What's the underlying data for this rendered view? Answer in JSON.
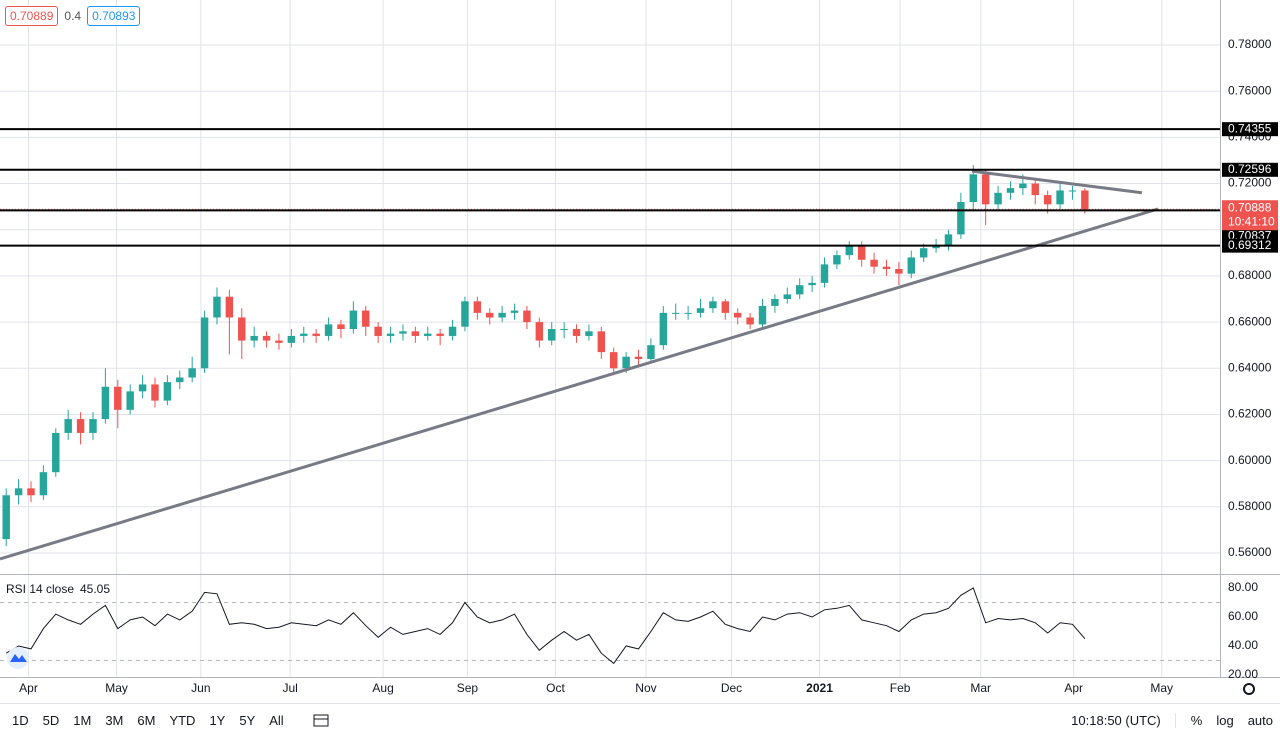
{
  "header": {
    "sell": "0.70889",
    "spread": "0.4",
    "buy": "0.70893"
  },
  "toolbar": {
    "ranges": [
      "1D",
      "5D",
      "1M",
      "3M",
      "6M",
      "YTD",
      "1Y",
      "5Y",
      "All"
    ],
    "time": "10:18:50 (UTC)",
    "options": [
      "%",
      "log",
      "auto"
    ]
  },
  "chart_data": [
    {
      "type": "candlestick",
      "up_color": "#26a69a",
      "down_color": "#ef5350",
      "grid": true,
      "xlim": [
        -0.5,
        97.9
      ],
      "ylim": [
        0.5509,
        0.7995
      ],
      "xticks": [
        {
          "value": 1.8,
          "label": "Apr"
        },
        {
          "value": 8.9,
          "label": "May"
        },
        {
          "value": 15.7,
          "label": "Jun"
        },
        {
          "value": 22.9,
          "label": "Jul"
        },
        {
          "value": 30.4,
          "label": "Aug"
        },
        {
          "value": 37.2,
          "label": "Sep"
        },
        {
          "value": 44.3,
          "label": "Oct"
        },
        {
          "value": 51.6,
          "label": "Nov"
        },
        {
          "value": 58.5,
          "label": "Dec"
        },
        {
          "value": 65.6,
          "label": "2021"
        },
        {
          "value": 72.1,
          "label": "Feb"
        },
        {
          "value": 78.6,
          "label": "Mar"
        },
        {
          "value": 86.1,
          "label": "Apr"
        },
        {
          "value": 93.2,
          "label": "May"
        }
      ],
      "yticks": [
        {
          "value": 0.56,
          "label": "0.56000"
        },
        {
          "value": 0.58,
          "label": "0.58000"
        },
        {
          "value": 0.6,
          "label": "0.60000"
        },
        {
          "value": 0.62,
          "label": "0.62000"
        },
        {
          "value": 0.64,
          "label": "0.64000"
        },
        {
          "value": 0.66,
          "label": "0.66000"
        },
        {
          "value": 0.68,
          "label": "0.68000"
        },
        {
          "value": 0.7,
          "label": "0.70000"
        },
        {
          "value": 0.72,
          "label": "0.72000"
        },
        {
          "value": 0.74,
          "label": "0.74000"
        },
        {
          "value": 0.76,
          "label": "0.76000"
        },
        {
          "value": 0.78,
          "label": "0.78000"
        }
      ],
      "levels": [
        0.74355,
        0.72596,
        0.70837,
        0.69312
      ],
      "trendlines": [
        {
          "x": [
            -0.5,
            92.9
          ],
          "y": [
            0.5574,
            0.709
          ]
        },
        {
          "x": [
            77.9,
            91.6
          ],
          "y": [
            0.7254,
            0.716
          ]
        }
      ],
      "countdown": "10:41:10",
      "ohlc": [
        [
          0.566,
          0.588,
          0.563,
          0.585
        ],
        [
          0.585,
          0.592,
          0.581,
          0.588
        ],
        [
          0.588,
          0.591,
          0.582,
          0.585
        ],
        [
          0.585,
          0.598,
          0.583,
          0.595
        ],
        [
          0.595,
          0.614,
          0.593,
          0.612
        ],
        [
          0.612,
          0.622,
          0.609,
          0.618
        ],
        [
          0.618,
          0.621,
          0.607,
          0.612
        ],
        [
          0.612,
          0.621,
          0.609,
          0.618
        ],
        [
          0.618,
          0.64,
          0.616,
          0.632
        ],
        [
          0.632,
          0.635,
          0.614,
          0.622
        ],
        [
          0.622,
          0.633,
          0.62,
          0.63
        ],
        [
          0.63,
          0.637,
          0.627,
          0.633
        ],
        [
          0.633,
          0.636,
          0.623,
          0.626
        ],
        [
          0.626,
          0.637,
          0.624,
          0.634
        ],
        [
          0.634,
          0.639,
          0.631,
          0.636
        ],
        [
          0.636,
          0.645,
          0.634,
          0.64
        ],
        [
          0.64,
          0.665,
          0.638,
          0.662
        ],
        [
          0.662,
          0.675,
          0.659,
          0.671
        ],
        [
          0.671,
          0.674,
          0.646,
          0.662
        ],
        [
          0.662,
          0.666,
          0.644,
          0.652
        ],
        [
          0.652,
          0.658,
          0.649,
          0.654
        ],
        [
          0.654,
          0.656,
          0.649,
          0.652
        ],
        [
          0.652,
          0.655,
          0.648,
          0.651
        ],
        [
          0.651,
          0.657,
          0.649,
          0.654
        ],
        [
          0.654,
          0.658,
          0.651,
          0.655
        ],
        [
          0.655,
          0.657,
          0.651,
          0.654
        ],
        [
          0.654,
          0.662,
          0.652,
          0.659
        ],
        [
          0.659,
          0.661,
          0.653,
          0.657
        ],
        [
          0.657,
          0.669,
          0.655,
          0.665
        ],
        [
          0.665,
          0.667,
          0.654,
          0.658
        ],
        [
          0.658,
          0.66,
          0.651,
          0.654
        ],
        [
          0.654,
          0.658,
          0.651,
          0.655
        ],
        [
          0.655,
          0.659,
          0.652,
          0.656
        ],
        [
          0.656,
          0.658,
          0.651,
          0.654
        ],
        [
          0.654,
          0.658,
          0.652,
          0.655
        ],
        [
          0.655,
          0.657,
          0.65,
          0.654
        ],
        [
          0.654,
          0.661,
          0.652,
          0.658
        ],
        [
          0.658,
          0.671,
          0.656,
          0.669
        ],
        [
          0.669,
          0.671,
          0.661,
          0.664
        ],
        [
          0.664,
          0.666,
          0.659,
          0.662
        ],
        [
          0.662,
          0.667,
          0.66,
          0.664
        ],
        [
          0.664,
          0.668,
          0.661,
          0.665
        ],
        [
          0.665,
          0.667,
          0.657,
          0.66
        ],
        [
          0.66,
          0.662,
          0.649,
          0.652
        ],
        [
          0.652,
          0.66,
          0.65,
          0.657
        ],
        [
          0.657,
          0.66,
          0.653,
          0.657
        ],
        [
          0.657,
          0.659,
          0.651,
          0.654
        ],
        [
          0.654,
          0.659,
          0.652,
          0.656
        ],
        [
          0.656,
          0.658,
          0.644,
          0.647
        ],
        [
          0.647,
          0.649,
          0.637,
          0.64
        ],
        [
          0.64,
          0.647,
          0.638,
          0.645
        ],
        [
          0.645,
          0.648,
          0.641,
          0.644
        ],
        [
          0.644,
          0.653,
          0.642,
          0.65
        ],
        [
          0.65,
          0.667,
          0.648,
          0.664
        ],
        [
          0.664,
          0.668,
          0.661,
          0.664
        ],
        [
          0.664,
          0.667,
          0.661,
          0.664
        ],
        [
          0.664,
          0.67,
          0.662,
          0.666
        ],
        [
          0.666,
          0.671,
          0.664,
          0.669
        ],
        [
          0.669,
          0.67,
          0.661,
          0.664
        ],
        [
          0.664,
          0.666,
          0.659,
          0.662
        ],
        [
          0.662,
          0.664,
          0.657,
          0.659
        ],
        [
          0.659,
          0.67,
          0.657,
          0.667
        ],
        [
          0.667,
          0.672,
          0.664,
          0.67
        ],
        [
          0.67,
          0.675,
          0.668,
          0.672
        ],
        [
          0.672,
          0.679,
          0.67,
          0.676
        ],
        [
          0.676,
          0.68,
          0.673,
          0.677
        ],
        [
          0.677,
          0.688,
          0.675,
          0.685
        ],
        [
          0.685,
          0.691,
          0.683,
          0.689
        ],
        [
          0.689,
          0.695,
          0.687,
          0.693
        ],
        [
          0.693,
          0.695,
          0.684,
          0.687
        ],
        [
          0.687,
          0.69,
          0.681,
          0.684
        ],
        [
          0.684,
          0.687,
          0.68,
          0.683
        ],
        [
          0.683,
          0.686,
          0.676,
          0.681
        ],
        [
          0.681,
          0.691,
          0.679,
          0.688
        ],
        [
          0.688,
          0.694,
          0.686,
          0.692
        ],
        [
          0.692,
          0.696,
          0.69,
          0.693
        ],
        [
          0.693,
          0.7,
          0.691,
          0.698
        ],
        [
          0.698,
          0.716,
          0.696,
          0.712
        ],
        [
          0.712,
          0.728,
          0.708,
          0.724
        ],
        [
          0.724,
          0.726,
          0.702,
          0.711
        ],
        [
          0.711,
          0.719,
          0.708,
          0.716
        ],
        [
          0.716,
          0.721,
          0.713,
          0.718
        ],
        [
          0.718,
          0.724,
          0.715,
          0.72
        ],
        [
          0.72,
          0.722,
          0.711,
          0.715
        ],
        [
          0.715,
          0.717,
          0.707,
          0.711
        ],
        [
          0.711,
          0.72,
          0.709,
          0.717
        ],
        [
          0.717,
          0.719,
          0.713,
          0.717
        ],
        [
          0.717,
          0.718,
          0.707,
          0.70888
        ]
      ]
    },
    {
      "type": "line",
      "title": "RSI 14 close",
      "color": "#131722",
      "xlim": [
        -0.5,
        97.9
      ],
      "ylim": [
        18.6,
        89
      ],
      "yticks": [
        {
          "value": 20,
          "label": "20.00"
        },
        {
          "value": 40,
          "label": "40.00"
        },
        {
          "value": 60,
          "label": "60.00"
        },
        {
          "value": 80,
          "label": "80.00"
        }
      ],
      "bands": [
        70,
        30
      ],
      "values": [
        35,
        40,
        38,
        52,
        62,
        58,
        55,
        62,
        68,
        52,
        58,
        60,
        54,
        62,
        58,
        64,
        77,
        76,
        55,
        56,
        55,
        52,
        53,
        56,
        55,
        54,
        58,
        55,
        63,
        54,
        46,
        53,
        48,
        50,
        52,
        48,
        56,
        70,
        60,
        56,
        58,
        62,
        48,
        37,
        44,
        50,
        44,
        48,
        35,
        28,
        40,
        38,
        50,
        63,
        58,
        57,
        60,
        64,
        55,
        52,
        50,
        60,
        58,
        62,
        63,
        60,
        65,
        66,
        68,
        58,
        56,
        54,
        50,
        58,
        62,
        63,
        66,
        75,
        80,
        56,
        59,
        58,
        59,
        56,
        49,
        56,
        55,
        45.05
      ]
    }
  ]
}
